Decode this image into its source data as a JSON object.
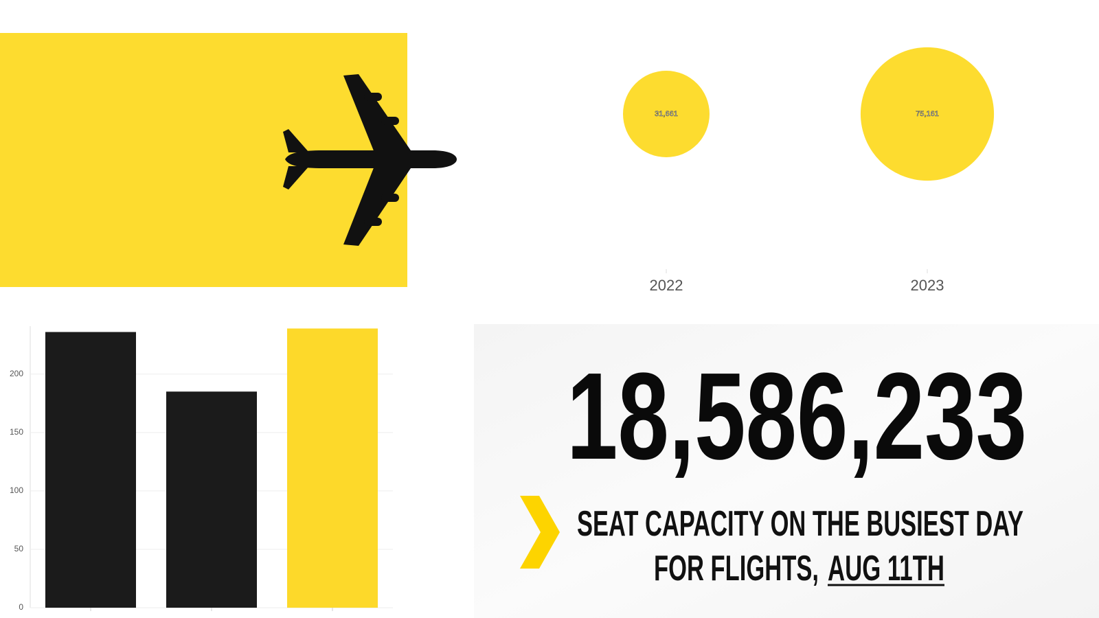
{
  "chart_data": [
    {
      "type": "bubble",
      "categories": [
        "2022",
        "2023"
      ],
      "values": [
        31661,
        75161
      ],
      "value_labels": [
        "31,661",
        "75,161"
      ],
      "color": "#fddc2f"
    },
    {
      "type": "bar",
      "categories": [
        null,
        null,
        null
      ],
      "values": [
        236,
        185,
        239
      ],
      "colors": [
        "#1b1b1b",
        "#1b1b1b",
        "#fdd92a"
      ],
      "ylim": [
        0,
        241
      ],
      "yticks": [
        0,
        50,
        100,
        150,
        200
      ],
      "grid": true
    }
  ],
  "stat": {
    "value": "18,586,233",
    "caption_line1": "SEAT CAPACITY ON THE BUSIEST DAY",
    "caption_line2": "FOR FLIGHTS,",
    "highlight": "AUG 11TH"
  }
}
